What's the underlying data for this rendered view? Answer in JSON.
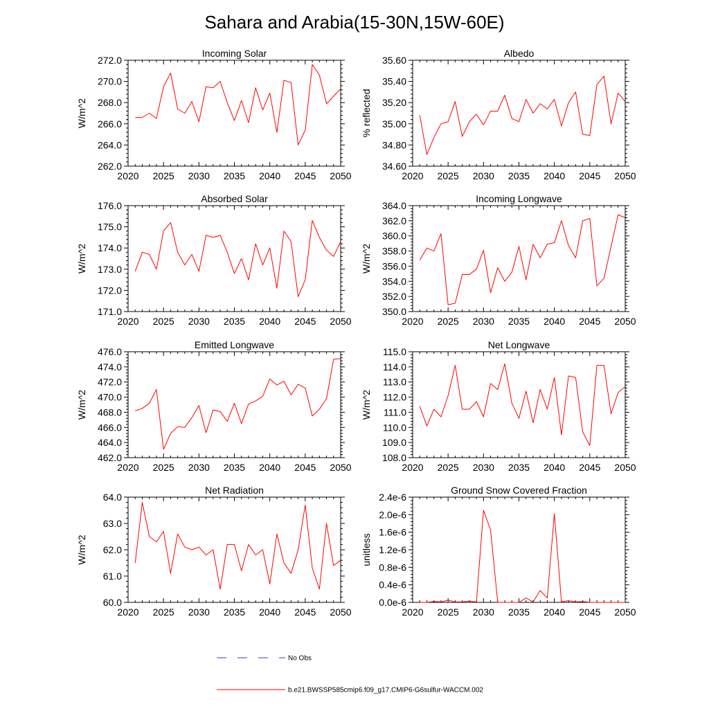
{
  "title": "Sahara and Arabia(15-30N,15W-60E)",
  "legend": {
    "entries": [
      {
        "label": "No Obs",
        "color": "#3f3faa",
        "style": "dashed"
      },
      {
        "label": "b.e21.BWSSP585cmip6.f09_g17.CMIP6-G6sulfur-WACCM.002",
        "color": "#ff0000",
        "style": "solid"
      }
    ]
  },
  "chart_data": [
    {
      "type": "line",
      "title": "Incoming Solar",
      "ylabel": "W/m^2",
      "xlim": [
        2020,
        2050
      ],
      "xticks": [
        2020,
        2025,
        2030,
        2035,
        2040,
        2045,
        2050
      ],
      "ylim": [
        262,
        272
      ],
      "yticks": [
        262,
        264,
        266,
        268,
        270,
        272
      ],
      "ydecimals": 1,
      "x": [
        2021,
        2022,
        2023,
        2024,
        2025,
        2026,
        2027,
        2028,
        2029,
        2030,
        2031,
        2032,
        2033,
        2034,
        2035,
        2036,
        2037,
        2038,
        2039,
        2040,
        2041,
        2042,
        2043,
        2044,
        2045,
        2046,
        2047,
        2048,
        2049,
        2050
      ],
      "series": [
        {
          "color": "#ff0000",
          "values": [
            266.6,
            266.6,
            267.0,
            266.5,
            269.5,
            270.8,
            267.4,
            267.0,
            268.1,
            266.2,
            269.5,
            269.4,
            270.0,
            268.0,
            266.3,
            268.2,
            266.1,
            269.4,
            267.3,
            268.9,
            265.2,
            270.1,
            269.9,
            264.0,
            265.4,
            271.6,
            270.6,
            267.9,
            268.6,
            269.3
          ]
        }
      ]
    },
    {
      "type": "line",
      "title": "Albedo",
      "ylabel": "% reflected",
      "xlim": [
        2020,
        2050
      ],
      "xticks": [
        2020,
        2025,
        2030,
        2035,
        2040,
        2045,
        2050
      ],
      "ylim": [
        34.6,
        35.6
      ],
      "yticks": [
        34.6,
        34.8,
        35.0,
        35.2,
        35.4,
        35.6
      ],
      "ydecimals": 2,
      "x": [
        2021,
        2022,
        2023,
        2024,
        2025,
        2026,
        2027,
        2028,
        2029,
        2030,
        2031,
        2032,
        2033,
        2034,
        2035,
        2036,
        2037,
        2038,
        2039,
        2040,
        2041,
        2042,
        2043,
        2044,
        2045,
        2046,
        2047,
        2048,
        2049,
        2050
      ],
      "series": [
        {
          "color": "#ff0000",
          "values": [
            35.08,
            34.71,
            34.87,
            35.0,
            35.02,
            35.21,
            34.88,
            35.02,
            35.09,
            34.99,
            35.12,
            35.12,
            35.27,
            35.05,
            35.02,
            35.23,
            35.1,
            35.19,
            35.14,
            35.23,
            34.98,
            35.2,
            35.3,
            34.9,
            34.89,
            35.37,
            35.45,
            35.0,
            35.29,
            35.21
          ]
        }
      ]
    },
    {
      "type": "line",
      "title": "Absorbed Solar",
      "ylabel": "W/m^2",
      "xlim": [
        2020,
        2050
      ],
      "xticks": [
        2020,
        2025,
        2030,
        2035,
        2040,
        2045,
        2050
      ],
      "ylim": [
        171,
        176
      ],
      "yticks": [
        171,
        172,
        173,
        174,
        175,
        176
      ],
      "ydecimals": 1,
      "x": [
        2021,
        2022,
        2023,
        2024,
        2025,
        2026,
        2027,
        2028,
        2029,
        2030,
        2031,
        2032,
        2033,
        2034,
        2035,
        2036,
        2037,
        2038,
        2039,
        2040,
        2041,
        2042,
        2043,
        2044,
        2045,
        2046,
        2047,
        2048,
        2049,
        2050
      ],
      "series": [
        {
          "color": "#ff0000",
          "values": [
            172.9,
            173.8,
            173.7,
            173.0,
            174.8,
            175.2,
            173.8,
            173.2,
            173.7,
            172.9,
            174.6,
            174.5,
            174.6,
            173.8,
            172.8,
            173.5,
            172.5,
            174.2,
            173.2,
            174.0,
            172.1,
            174.8,
            174.3,
            171.7,
            172.5,
            175.3,
            174.5,
            173.9,
            173.6,
            174.3
          ]
        }
      ]
    },
    {
      "type": "line",
      "title": "Incoming Longwave",
      "ylabel": "W/m^2",
      "xlim": [
        2020,
        2050
      ],
      "xticks": [
        2020,
        2025,
        2030,
        2035,
        2040,
        2045,
        2050
      ],
      "ylim": [
        350,
        364
      ],
      "yticks": [
        350,
        352,
        354,
        356,
        358,
        360,
        362,
        364
      ],
      "ydecimals": 1,
      "x": [
        2021,
        2022,
        2023,
        2024,
        2025,
        2026,
        2027,
        2028,
        2029,
        2030,
        2031,
        2032,
        2033,
        2034,
        2035,
        2036,
        2037,
        2038,
        2039,
        2040,
        2041,
        2042,
        2043,
        2044,
        2045,
        2046,
        2047,
        2048,
        2049,
        2050
      ],
      "series": [
        {
          "color": "#ff0000",
          "values": [
            356.8,
            358.4,
            358.0,
            360.3,
            350.9,
            351.1,
            354.9,
            354.9,
            355.6,
            358.1,
            352.5,
            355.8,
            354.0,
            355.2,
            358.6,
            354.2,
            358.9,
            357.1,
            358.9,
            359.1,
            362.0,
            358.7,
            357.1,
            362.0,
            362.3,
            353.4,
            354.4,
            358.6,
            362.8,
            362.4
          ]
        }
      ]
    },
    {
      "type": "line",
      "title": "Emitted Longwave",
      "ylabel": "W/m^2",
      "xlim": [
        2020,
        2050
      ],
      "xticks": [
        2020,
        2025,
        2030,
        2035,
        2040,
        2045,
        2050
      ],
      "ylim": [
        462,
        476
      ],
      "yticks": [
        462,
        464,
        466,
        468,
        470,
        472,
        474,
        476
      ],
      "ydecimals": 1,
      "x": [
        2021,
        2022,
        2023,
        2024,
        2025,
        2026,
        2027,
        2028,
        2029,
        2030,
        2031,
        2032,
        2033,
        2034,
        2035,
        2036,
        2037,
        2038,
        2039,
        2040,
        2041,
        2042,
        2043,
        2044,
        2045,
        2046,
        2047,
        2048,
        2049,
        2050
      ],
      "series": [
        {
          "color": "#ff0000",
          "values": [
            468.2,
            468.5,
            469.2,
            471.0,
            463.1,
            465.2,
            466.1,
            466.0,
            467.3,
            468.9,
            465.3,
            468.3,
            468.1,
            466.8,
            469.2,
            466.5,
            469.1,
            469.5,
            470.1,
            472.4,
            471.6,
            472.1,
            470.3,
            471.7,
            471.2,
            467.5,
            468.4,
            469.8,
            475.0,
            475.1
          ]
        }
      ]
    },
    {
      "type": "line",
      "title": "Net Longwave",
      "ylabel": "W/m^2",
      "xlim": [
        2020,
        2050
      ],
      "xticks": [
        2020,
        2025,
        2030,
        2035,
        2040,
        2045,
        2050
      ],
      "ylim": [
        108,
        115
      ],
      "yticks": [
        108,
        109,
        110,
        111,
        112,
        113,
        114,
        115
      ],
      "ydecimals": 1,
      "x": [
        2021,
        2022,
        2023,
        2024,
        2025,
        2026,
        2027,
        2028,
        2029,
        2030,
        2031,
        2032,
        2033,
        2034,
        2035,
        2036,
        2037,
        2038,
        2039,
        2040,
        2041,
        2042,
        2043,
        2044,
        2045,
        2046,
        2047,
        2048,
        2049,
        2050
      ],
      "series": [
        {
          "color": "#ff0000",
          "values": [
            111.4,
            110.1,
            111.2,
            110.7,
            112.1,
            114.1,
            111.2,
            111.2,
            111.7,
            110.7,
            112.9,
            112.5,
            114.2,
            111.6,
            110.6,
            112.4,
            110.3,
            112.5,
            111.2,
            113.3,
            109.5,
            113.4,
            113.3,
            109.7,
            108.8,
            114.1,
            114.1,
            110.9,
            112.3,
            112.7
          ]
        }
      ]
    },
    {
      "type": "line",
      "title": "Net Radiation",
      "ylabel": "W/m^2",
      "xlim": [
        2020,
        2050
      ],
      "xticks": [
        2020,
        2025,
        2030,
        2035,
        2040,
        2045,
        2050
      ],
      "ylim": [
        60,
        64
      ],
      "yticks": [
        60,
        61,
        62,
        63,
        64
      ],
      "ydecimals": 1,
      "x": [
        2021,
        2022,
        2023,
        2024,
        2025,
        2026,
        2027,
        2028,
        2029,
        2030,
        2031,
        2032,
        2033,
        2034,
        2035,
        2036,
        2037,
        2038,
        2039,
        2040,
        2041,
        2042,
        2043,
        2044,
        2045,
        2046,
        2047,
        2048,
        2049,
        2050
      ],
      "series": [
        {
          "color": "#ff0000",
          "values": [
            61.5,
            63.8,
            62.5,
            62.3,
            62.7,
            61.1,
            62.6,
            62.1,
            62.0,
            62.1,
            61.8,
            62.0,
            60.5,
            62.2,
            62.2,
            61.2,
            62.2,
            61.8,
            62.0,
            60.7,
            62.6,
            61.5,
            61.1,
            62.0,
            63.7,
            61.3,
            60.5,
            63.0,
            61.4,
            61.6
          ]
        }
      ]
    },
    {
      "type": "line",
      "title": "Ground Snow Covered Fraction",
      "ylabel": "unitless",
      "xlim": [
        2020,
        2050
      ],
      "xticks": [
        2020,
        2025,
        2030,
        2035,
        2040,
        2045,
        2050
      ],
      "ylim": [
        0,
        2.4e-06
      ],
      "yticks": [
        0,
        4e-07,
        8e-07,
        1.2e-06,
        1.6e-06,
        2e-06,
        2.4e-06
      ],
      "yticklabels": [
        "0.0e-6",
        "0.4e-6",
        "0.8e-6",
        "1.2e-6",
        "1.6e-6",
        "2.0e-6",
        "2.4e-6"
      ],
      "x": [
        2021,
        2022,
        2023,
        2024,
        2025,
        2026,
        2027,
        2028,
        2029,
        2030,
        2031,
        2032,
        2033,
        2034,
        2035,
        2036,
        2037,
        2038,
        2039,
        2040,
        2041,
        2042,
        2043,
        2044,
        2045,
        2046,
        2047,
        2048,
        2049,
        2050
      ],
      "series": [
        {
          "color": "#ff0000",
          "values": [
            0,
            0,
            2e-08,
            1e-08,
            5e-08,
            1e-08,
            1e-08,
            3e-08,
            1e-08,
            2.1e-06,
            1.65e-06,
            0,
            0,
            0,
            0,
            1e-07,
            1e-08,
            2.7e-07,
            1e-07,
            2.02e-06,
            1e-08,
            4e-08,
            1e-08,
            2e-08,
            0,
            0,
            0,
            0,
            0,
            0
          ]
        }
      ]
    }
  ]
}
